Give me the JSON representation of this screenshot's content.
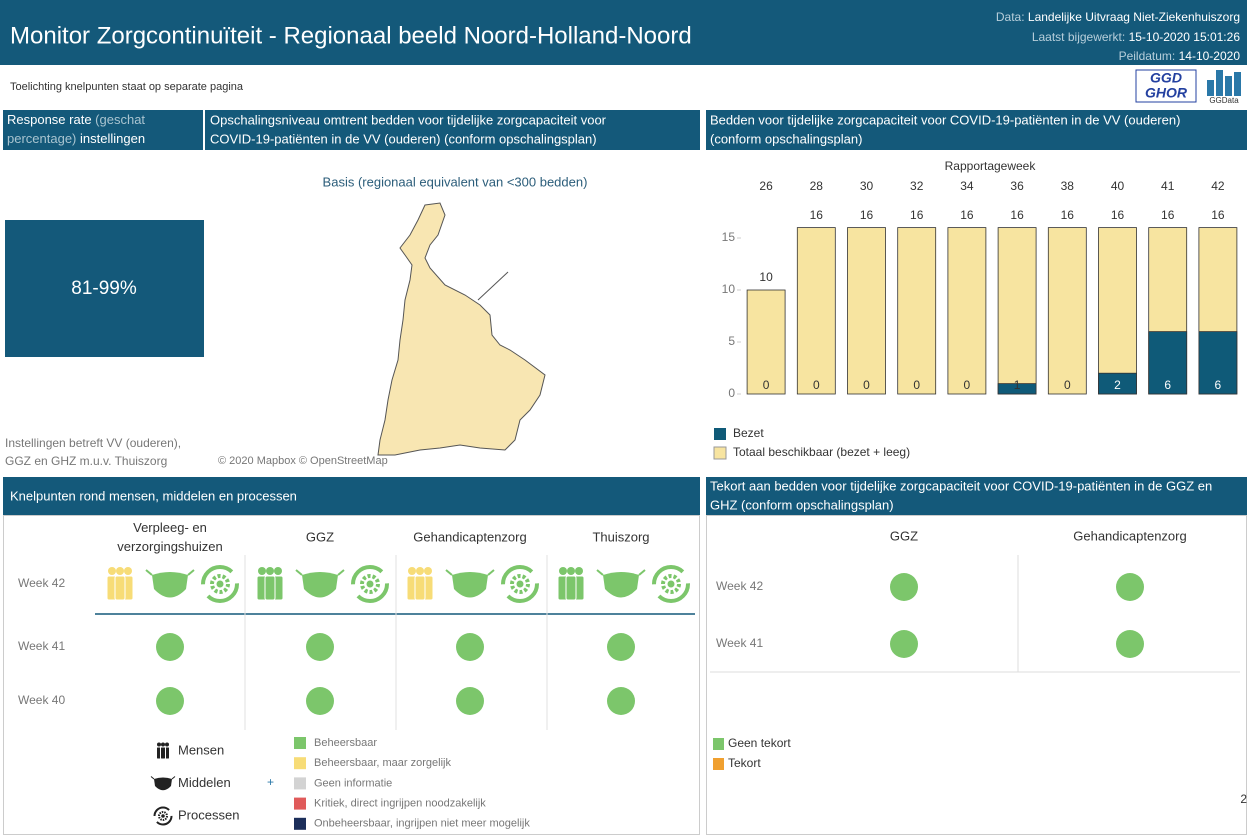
{
  "header": {
    "title": "Monitor Zorgcontinuïteit - Regionaal beeld Noord-Holland-Noord",
    "data_label": "Data:",
    "data_value": "Landelijke Uitvraag Niet-Ziekenhuiszorg",
    "updated_label": "Laatst bijgewerkt:",
    "updated_value": "15-10-2020 15:01:26",
    "peildatum_label": "Peildatum:",
    "peildatum_value": "14-10-2020"
  },
  "note": "Toelichting knelpunten staat op separate pagina",
  "logos": {
    "ggd_top": "GGD",
    "ggd_bottom": "GHOR",
    "ggdata": "GGData"
  },
  "response": {
    "title_lines": [
      [
        "Response rate",
        " (geschat"
      ],
      [
        "percentage)",
        " instellingen"
      ]
    ],
    "value": "81-99%",
    "footnote_lines": [
      "Instellingen betreft VV (ouderen),",
      "GGZ en GHZ m.u.v. Thuiszorg"
    ]
  },
  "map": {
    "title_lines": [
      "Opschalingsniveau omtrent bedden voor tijdelijke zorgcapaciteit voor",
      "COVID-19-patiënten in de VV (ouderen) (conform opschalingsplan)"
    ],
    "subtitle": "Basis (regionaal equivalent van <300 bedden)",
    "credit": "© 2020 Mapbox © OpenStreetMap"
  },
  "chart_data": {
    "type": "bar",
    "title_lines": [
      "Bedden voor tijdelijke zorgcapaciteit voor COVID-19-patiënten in de VV (ouderen)",
      "(conform opschalingsplan)"
    ],
    "x_label": "Rapportageweek",
    "categories": [
      "26",
      "28",
      "30",
      "32",
      "34",
      "36",
      "38",
      "40",
      "41",
      "42"
    ],
    "series": [
      {
        "name": "Bezet",
        "color": "#0f5a78",
        "values": [
          0,
          0,
          0,
          0,
          0,
          1,
          0,
          2,
          6,
          6
        ]
      },
      {
        "name": "Totaal beschikbaar (bezet + leeg)",
        "color": "#f7e4a0",
        "values": [
          10,
          16,
          16,
          16,
          16,
          16,
          16,
          16,
          16,
          16
        ]
      }
    ],
    "ylim": [
      0,
      18
    ],
    "yticks": [
      0,
      5,
      10,
      15
    ]
  },
  "knelpunten": {
    "title": "Knelpunten rond mensen, middelen en processen",
    "columns": [
      [
        "Verpleeg- en",
        "verzorgingshuizen"
      ],
      [
        "GGZ"
      ],
      [
        "Gehandicaptenzorg"
      ],
      [
        "Thuiszorg"
      ]
    ],
    "rows": [
      {
        "label": "Week 42",
        "cells": [
          [
            "#f7dc77",
            "#7cc66b",
            "#7cc66b"
          ],
          [
            "#7cc66b",
            "#7cc66b",
            "#7cc66b"
          ],
          [
            "#f7dc77",
            "#7cc66b",
            "#7cc66b"
          ],
          [
            "#7cc66b",
            "#7cc66b",
            "#7cc66b"
          ]
        ]
      },
      {
        "label": "Week 41",
        "cells": [
          "#7cc66b",
          "#7cc66b",
          "#7cc66b",
          "#7cc66b"
        ]
      },
      {
        "label": "Week 40",
        "cells": [
          "#7cc66b",
          "#7cc66b",
          "#7cc66b",
          "#7cc66b"
        ]
      }
    ],
    "icon_legend": [
      "Mensen",
      "Middelen",
      "Processen"
    ],
    "plus": "+",
    "status_legend": [
      {
        "label": "Beheersbaar",
        "color": "#7cc66b"
      },
      {
        "label": "Beheersbaar, maar zorgelijk",
        "color": "#f7dc77"
      },
      {
        "label": "Geen informatie",
        "color": "#d3d3d3"
      },
      {
        "label": "Kritiek, direct ingrijpen noodzakelijk",
        "color": "#e05a5a"
      },
      {
        "label": "Onbeheersbaar, ingrijpen niet meer mogelijk",
        "color": "#1c2e5a"
      }
    ]
  },
  "tekort": {
    "title_lines": [
      "Tekort aan bedden voor tijdelijke zorgcapaciteit voor COVID-19-patiënten in de GGZ en",
      "GHZ (conform opschalingsplan)"
    ],
    "columns": [
      "GGZ",
      "Gehandicaptenzorg"
    ],
    "rows": [
      {
        "label": "Week 42",
        "cells": [
          "#7cc66b",
          "#7cc66b"
        ]
      },
      {
        "label": "Week 41",
        "cells": [
          "#7cc66b",
          "#7cc66b"
        ]
      }
    ],
    "legend": [
      {
        "label": "Geen tekort",
        "color": "#7cc66b"
      },
      {
        "label": "Tekort",
        "color": "#f0a030"
      }
    ]
  },
  "page_number": "2"
}
